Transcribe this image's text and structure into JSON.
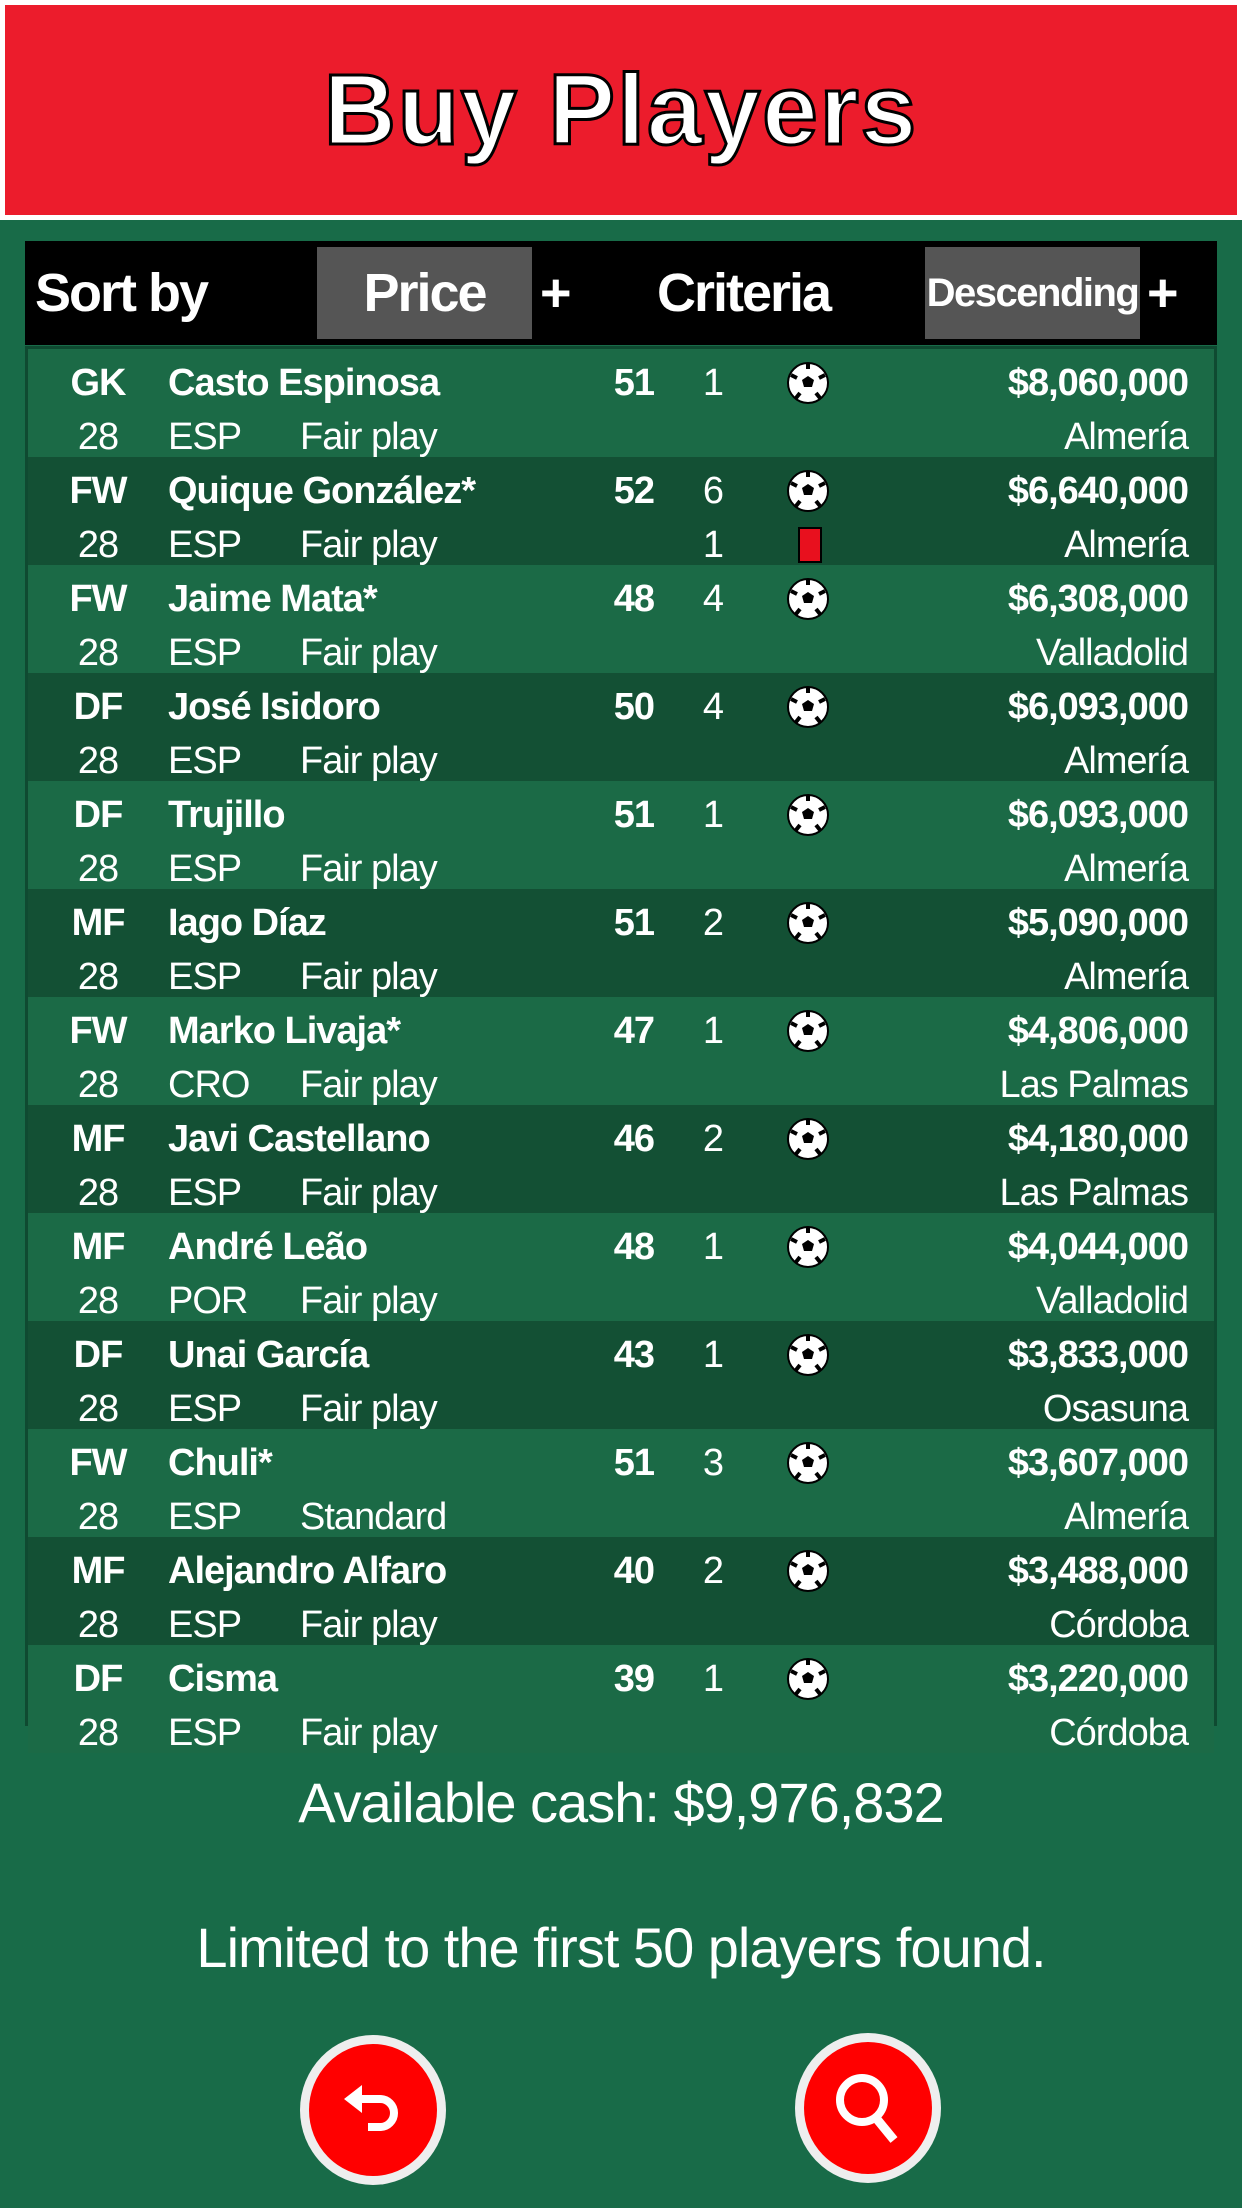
{
  "header": {
    "title": "Buy Players"
  },
  "sortbar": {
    "label": "Sort by",
    "field": "Price",
    "plus1": "+",
    "criteria": "Criteria",
    "order": "Descending",
    "plus2": "+"
  },
  "players": [
    {
      "pos": "GK",
      "name": "Casto Espinosa",
      "rating": "51",
      "num": "1",
      "icon": "soccer-ball",
      "price": "$8,060,000",
      "age": "28",
      "nat": "ESP",
      "style": "Fair play",
      "club": "Almería"
    },
    {
      "pos": "FW",
      "name": "Quique González*",
      "rating": "52",
      "num": "6",
      "icon": "soccer-ball",
      "price": "$6,640,000",
      "age": "28",
      "nat": "ESP",
      "style": "Fair play",
      "club": "Almería",
      "num2": "1",
      "icon2": "red-card"
    },
    {
      "pos": "FW",
      "name": "Jaime Mata*",
      "rating": "48",
      "num": "4",
      "icon": "soccer-ball",
      "price": "$6,308,000",
      "age": "28",
      "nat": "ESP",
      "style": "Fair play",
      "club": "Valladolid"
    },
    {
      "pos": "DF",
      "name": "José Isidoro",
      "rating": "50",
      "num": "4",
      "icon": "soccer-ball",
      "price": "$6,093,000",
      "age": "28",
      "nat": "ESP",
      "style": "Fair play",
      "club": "Almería"
    },
    {
      "pos": "DF",
      "name": "Trujillo",
      "rating": "51",
      "num": "1",
      "icon": "soccer-ball",
      "price": "$6,093,000",
      "age": "28",
      "nat": "ESP",
      "style": "Fair play",
      "club": "Almería"
    },
    {
      "pos": "MF",
      "name": "Iago Díaz",
      "rating": "51",
      "num": "2",
      "icon": "soccer-ball",
      "price": "$5,090,000",
      "age": "28",
      "nat": "ESP",
      "style": "Fair play",
      "club": "Almería"
    },
    {
      "pos": "FW",
      "name": "Marko Livaja*",
      "rating": "47",
      "num": "1",
      "icon": "soccer-ball",
      "price": "$4,806,000",
      "age": "28",
      "nat": "CRO",
      "style": "Fair play",
      "club": "Las Palmas"
    },
    {
      "pos": "MF",
      "name": "Javi Castellano",
      "rating": "46",
      "num": "2",
      "icon": "soccer-ball",
      "price": "$4,180,000",
      "age": "28",
      "nat": "ESP",
      "style": "Fair play",
      "club": "Las Palmas"
    },
    {
      "pos": "MF",
      "name": "André Leão",
      "rating": "48",
      "num": "1",
      "icon": "soccer-ball",
      "price": "$4,044,000",
      "age": "28",
      "nat": "POR",
      "style": "Fair play",
      "club": "Valladolid"
    },
    {
      "pos": "DF",
      "name": "Unai García",
      "rating": "43",
      "num": "1",
      "icon": "soccer-ball",
      "price": "$3,833,000",
      "age": "28",
      "nat": "ESP",
      "style": "Fair play",
      "club": "Osasuna"
    },
    {
      "pos": "FW",
      "name": "Chuli*",
      "rating": "51",
      "num": "3",
      "icon": "soccer-ball",
      "price": "$3,607,000",
      "age": "28",
      "nat": "ESP",
      "style": "Standard",
      "club": "Almería"
    },
    {
      "pos": "MF",
      "name": "Alejandro Alfaro",
      "rating": "40",
      "num": "2",
      "icon": "soccer-ball",
      "price": "$3,488,000",
      "age": "28",
      "nat": "ESP",
      "style": "Fair play",
      "club": "Córdoba"
    },
    {
      "pos": "DF",
      "name": "Cisma",
      "rating": "39",
      "num": "1",
      "icon": "soccer-ball",
      "price": "$3,220,000",
      "age": "28",
      "nat": "ESP",
      "style": "Fair play",
      "club": "Córdoba"
    }
  ],
  "footer": {
    "cash": "Available cash: $9,976,832",
    "limit": "Limited to the first 50 players found."
  },
  "buttons": {
    "back_icon": "back-arrow",
    "search_icon": "magnifier"
  },
  "colors": {
    "header": "#ec1c2c",
    "background": "#186b48",
    "row_dark": "#135034",
    "button": "#ff0000"
  }
}
